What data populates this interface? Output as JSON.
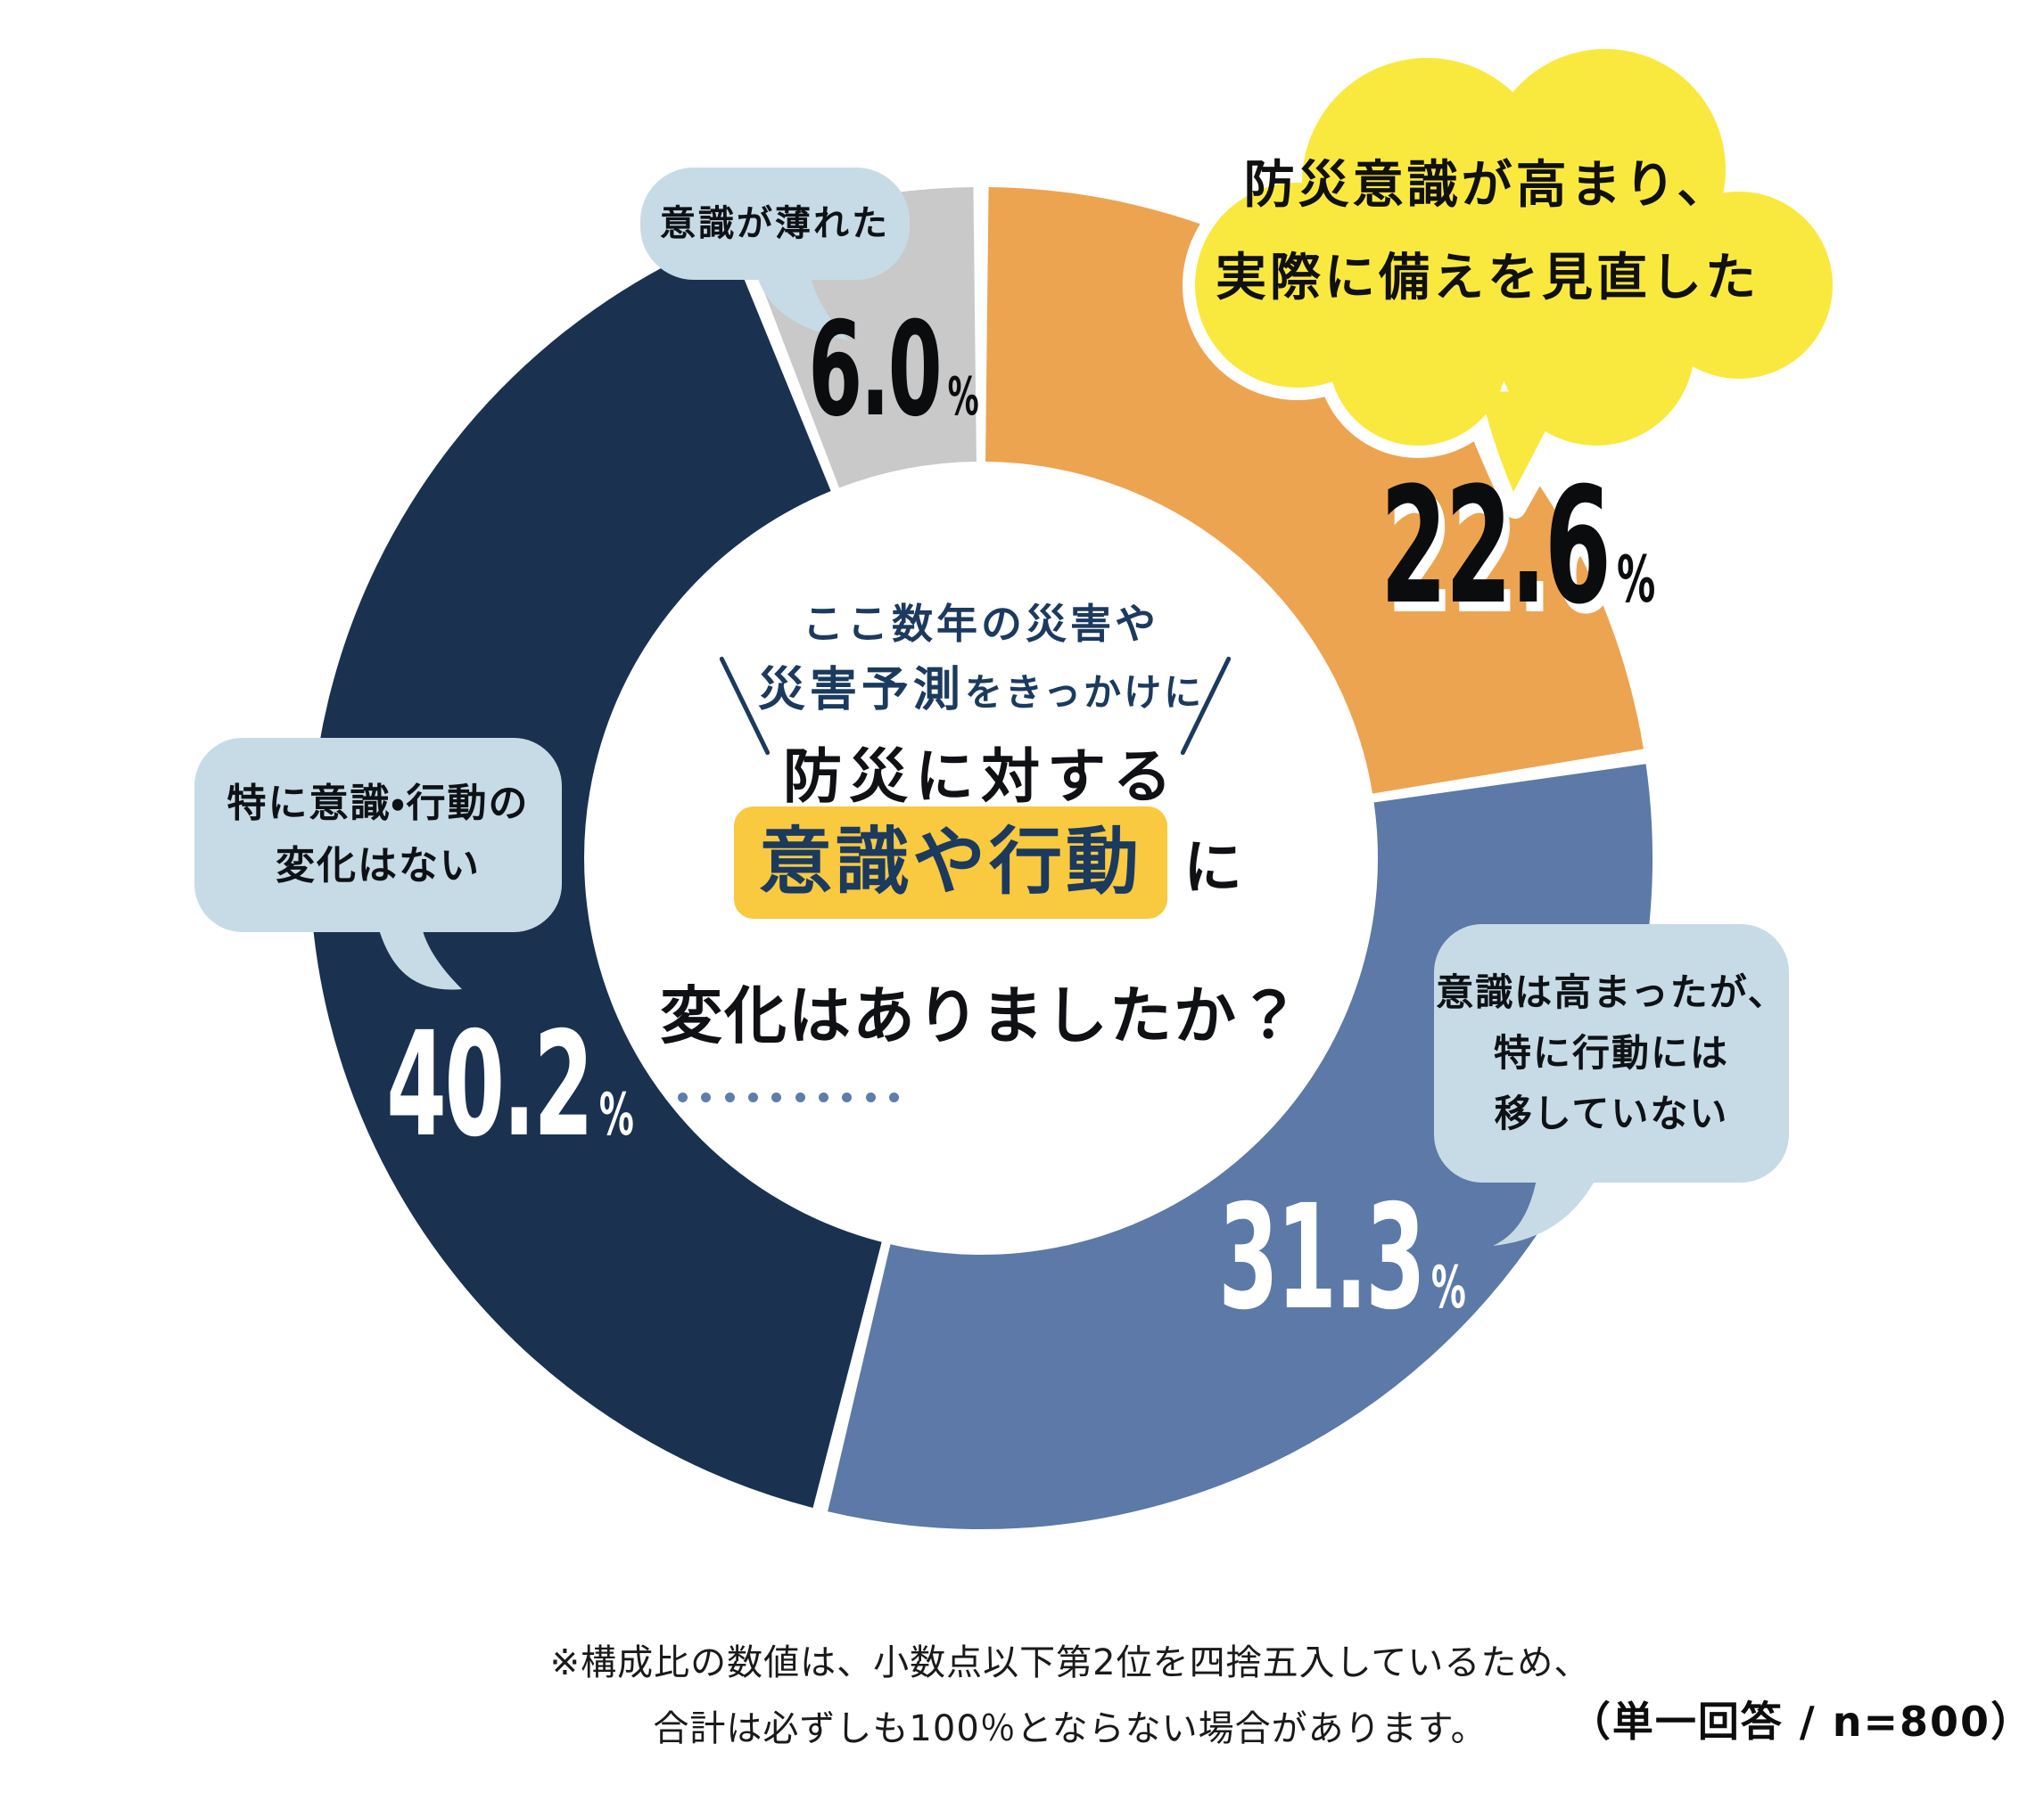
{
  "chart_data": {
    "type": "pie",
    "donut": true,
    "title": "ここ数年の災害や災害予測をきっかけに 防災に対する意識や行動に変化はありましたか？",
    "unit": "%",
    "start_angle_deg": 0,
    "clockwise": true,
    "legend_position": "callout-bubbles",
    "segments": [
      {
        "label": "防災意識が高まり、実際に備えを見直した",
        "value": 22.6,
        "color": "#eca451"
      },
      {
        "label": "意識は高まったが、特に行動には移していない",
        "value": 31.3,
        "color": "#5c79a7"
      },
      {
        "label": "特に意識・行動の変化はない",
        "value": 40.2,
        "color": "#1a3150"
      },
      {
        "label": "意識が薄れた",
        "value": 6.0,
        "color": "#c9c9ca"
      }
    ]
  },
  "center": {
    "intro_line1": "ここ数年の災害や",
    "intro_line2_strong": "災害予測",
    "intro_line2_rest": "をきっかけに",
    "question_line1": "防災に対する",
    "highlight": "意識や行動",
    "particle": "に",
    "question_line2": "変化はありましたか？"
  },
  "labels": {
    "reviewed": {
      "value": "22.6",
      "unit": "%"
    },
    "no_action": {
      "value": "31.3",
      "unit": "%"
    },
    "no_change": {
      "value": "40.2",
      "unit": "%"
    },
    "faded": {
      "value": "6.0",
      "unit": "%"
    }
  },
  "bubbles": {
    "faded": {
      "text": "意識が薄れた"
    },
    "reviewed": {
      "line1": "防災意識が高まり、",
      "line2": "実際に備えを見直した"
    },
    "no_action": {
      "line1": "意識は高まったが、",
      "line2": "特に行動には",
      "line3": "移していない"
    },
    "no_change": {
      "line1": "特に意識・行動の",
      "line2": "変化はない"
    }
  },
  "footnote": {
    "line1": "※構成比の数値は、小数点以下第2位を四捨五入しているため、",
    "line2": "合計は必ずしも100％とならない場合があります。",
    "sample": "（単一回答 / n=800）"
  },
  "colors": {
    "reviewed_orange": "#eca451",
    "no_action_blue": "#5c79a7",
    "no_change_navy": "#1a3150",
    "faded_gray": "#c9c9ca",
    "bubble_blue": "#c7dbe6",
    "cloud_yellow": "#f9e93f",
    "highlight_gold": "#f9c93f",
    "navy_text": "#1c3a5e",
    "dot_blue": "#5e7da9"
  }
}
